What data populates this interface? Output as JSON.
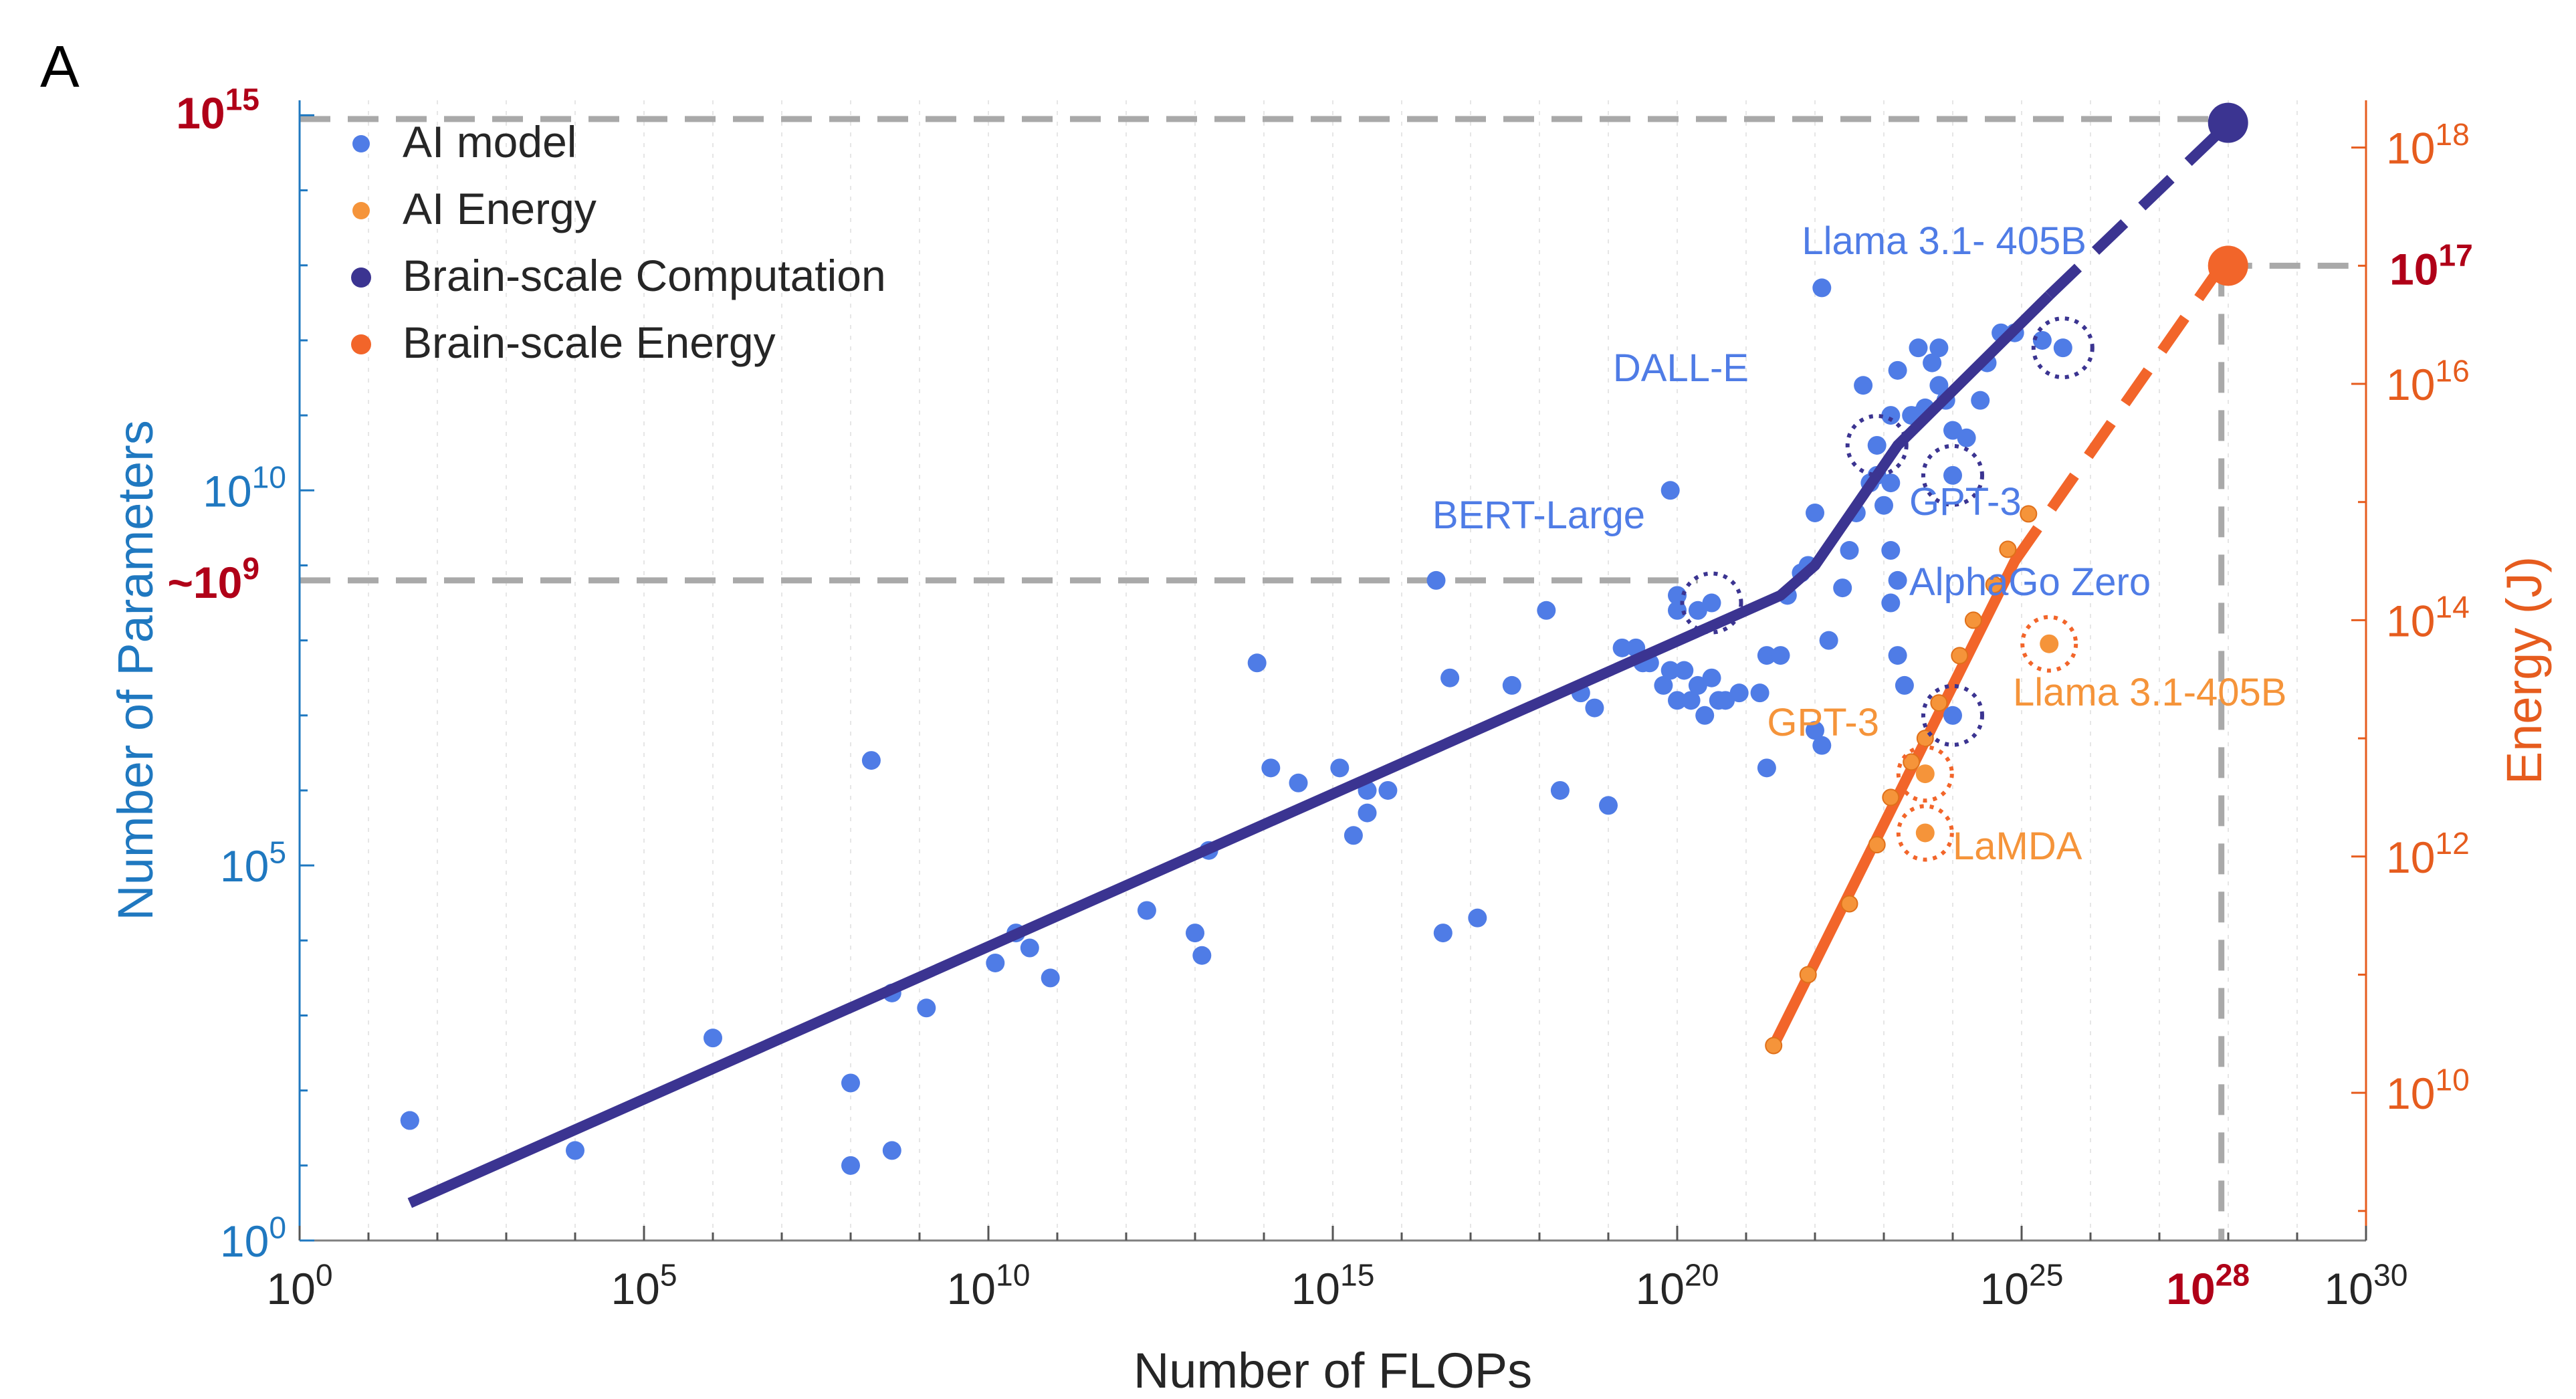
{
  "panel_label": "A",
  "colors": {
    "ai_model": "#4f7ce6",
    "ai_energy": "#f5943a",
    "brain_computation": "#3b3491",
    "brain_energy": "#f2652a",
    "guide": "#a9a9a9",
    "left_axis": "#1f78c0",
    "right_axis": "#e65c1e",
    "highlight": "#b00018"
  },
  "chart_data": {
    "type": "scatter",
    "title": "",
    "xlabel": "Number of FLOPs",
    "ylabel_left": "Number of Parameters",
    "ylabel_right": "Energy (J)",
    "x_log_range": [
      0,
      30
    ],
    "y_left_log_range": [
      0,
      15.2
    ],
    "y_right_log_range": [
      8.75,
      18.4
    ],
    "x_ticks": [
      0,
      5,
      10,
      15,
      20,
      25,
      30
    ],
    "y_left_ticks": [
      0,
      5,
      10
    ],
    "y_right_ticks": [
      10,
      12,
      14,
      16,
      18
    ],
    "grid": "x-only",
    "legend_position": "top-left",
    "legend": [
      {
        "key": "ai_model",
        "label": "AI model",
        "symbol": "dot"
      },
      {
        "key": "ai_energy",
        "label": "AI Energy",
        "symbol": "dot"
      },
      {
        "key": "brain_computation",
        "label": "Brain-scale Computation",
        "symbol": "line"
      },
      {
        "key": "brain_energy",
        "label": "Brain-scale Energy",
        "symbol": "line"
      }
    ],
    "highlights": {
      "x_brain_label_base": "10",
      "x_brain_label_exp": "28",
      "x_brain_value": 27.9,
      "y_param_top_base": "10",
      "y_param_top_exp": "15",
      "y_param_top_value": 14.95,
      "y_param_mid_base": "~10",
      "y_param_mid_exp": "9",
      "y_param_mid_value": 8.8,
      "y_energy_base": "10",
      "y_energy_exp": "17",
      "y_energy_value": 17.0
    },
    "ai_models": [
      [
        1.6,
        1.6
      ],
      [
        4.0,
        1.2
      ],
      [
        1.6,
        1.6
      ],
      [
        6.0,
        2.7
      ],
      [
        8.0,
        2.1
      ],
      [
        8.0,
        1.0
      ],
      [
        8.3,
        6.4
      ],
      [
        8.6,
        3.3
      ],
      [
        8.6,
        1.2
      ],
      [
        9.1,
        3.1
      ],
      [
        10.1,
        3.7
      ],
      [
        10.4,
        4.1
      ],
      [
        10.6,
        3.9
      ],
      [
        10.9,
        3.5
      ],
      [
        12.3,
        4.4
      ],
      [
        13.0,
        4.1
      ],
      [
        13.1,
        3.8
      ],
      [
        13.2,
        5.2
      ],
      [
        13.9,
        7.7
      ],
      [
        14.1,
        6.3
      ],
      [
        14.5,
        6.1
      ],
      [
        15.1,
        6.3
      ],
      [
        15.3,
        5.4
      ],
      [
        15.5,
        5.7
      ],
      [
        15.5,
        6.0
      ],
      [
        15.8,
        6.0
      ],
      [
        16.5,
        8.8
      ],
      [
        16.6,
        4.1
      ],
      [
        16.7,
        7.5
      ],
      [
        17.1,
        4.3
      ],
      [
        17.6,
        7.4
      ],
      [
        18.1,
        8.4
      ],
      [
        18.3,
        6.0
      ],
      [
        18.6,
        7.3
      ],
      [
        18.8,
        7.1
      ],
      [
        19.0,
        5.8
      ],
      [
        19.2,
        7.9
      ],
      [
        19.4,
        7.9
      ],
      [
        19.5,
        7.7
      ],
      [
        19.6,
        7.7
      ],
      [
        19.8,
        7.4
      ],
      [
        19.9,
        7.6
      ],
      [
        20.0,
        7.2
      ],
      [
        20.1,
        7.6
      ],
      [
        20.2,
        7.2
      ],
      [
        20.3,
        7.4
      ],
      [
        20.4,
        7.0
      ],
      [
        20.5,
        7.5
      ],
      [
        20.6,
        7.2
      ],
      [
        20.7,
        7.2
      ],
      [
        20.9,
        7.3
      ],
      [
        20.0,
        8.4
      ],
      [
        19.9,
        10.0
      ],
      [
        20.0,
        8.6
      ],
      [
        20.3,
        8.4
      ],
      [
        21.2,
        7.3
      ],
      [
        21.3,
        7.8
      ],
      [
        21.3,
        6.3
      ],
      [
        21.5,
        7.8
      ],
      [
        21.6,
        8.6
      ],
      [
        21.8,
        8.9
      ],
      [
        21.9,
        9.0
      ],
      [
        22.0,
        9.7
      ],
      [
        22.0,
        6.8
      ],
      [
        22.1,
        6.6
      ],
      [
        22.1,
        12.7
      ],
      [
        22.2,
        8.0
      ],
      [
        22.4,
        8.7
      ],
      [
        22.5,
        9.2
      ],
      [
        22.6,
        9.7
      ],
      [
        22.7,
        11.4
      ],
      [
        22.8,
        10.1
      ],
      [
        22.9,
        10.2
      ],
      [
        23.0,
        9.8
      ],
      [
        23.1,
        10.1
      ],
      [
        23.2,
        11.6
      ],
      [
        23.1,
        11.0
      ],
      [
        23.4,
        11.0
      ],
      [
        23.5,
        11.0
      ],
      [
        23.6,
        11.1
      ],
      [
        23.7,
        11.7
      ],
      [
        23.8,
        11.4
      ],
      [
        24.0,
        10.8
      ],
      [
        23.5,
        11.9
      ],
      [
        23.8,
        11.9
      ],
      [
        24.5,
        11.7
      ],
      [
        24.7,
        12.1
      ],
      [
        24.9,
        12.1
      ],
      [
        25.3,
        12.0
      ],
      [
        23.1,
        8.5
      ],
      [
        23.2,
        8.8
      ],
      [
        23.3,
        7.4
      ],
      [
        23.2,
        7.8
      ],
      [
        23.1,
        9.2
      ],
      [
        23.9,
        11.2
      ],
      [
        24.2,
        10.7
      ],
      [
        24.4,
        11.2
      ]
    ],
    "ai_energy_points": [
      [
        21.4,
        10.4
      ],
      [
        21.9,
        11.0
      ],
      [
        22.5,
        11.6
      ],
      [
        22.9,
        12.1
      ],
      [
        23.1,
        12.5
      ],
      [
        23.4,
        12.8
      ],
      [
        23.6,
        13.0
      ],
      [
        23.8,
        13.3
      ],
      [
        24.1,
        13.7
      ],
      [
        24.3,
        14.0
      ],
      [
        24.6,
        14.3
      ],
      [
        24.8,
        14.6
      ],
      [
        25.1,
        14.9
      ]
    ],
    "ai_energy_labeled": [
      {
        "name": "LaMDA",
        "x": 23.6,
        "y": 12.2
      },
      {
        "name": "GPT-3",
        "x": 23.6,
        "y": 12.7
      },
      {
        "name": "Llama 3.1-405B",
        "x": 25.4,
        "y": 13.8
      }
    ],
    "ai_model_labeled": [
      {
        "name": "Llama 3.1- 405B",
        "x": 25.6,
        "y": 11.9
      },
      {
        "name": "DALL-E",
        "x": 22.9,
        "y": 10.6
      },
      {
        "name": "GPT-3",
        "x": 24.0,
        "y": 10.2
      },
      {
        "name": "BERT-Large",
        "x": 20.5,
        "y": 8.5
      },
      {
        "name": "AlphaGo Zero",
        "x": 24.0,
        "y": 7.0
      }
    ],
    "brain_computation_solid": [
      [
        1.6,
        0.5
      ],
      [
        21.5,
        8.6
      ],
      [
        22.0,
        9.0
      ],
      [
        23.2,
        10.6
      ],
      [
        25.4,
        12.6
      ]
    ],
    "brain_computation_dashed": [
      [
        25.4,
        12.6
      ],
      [
        27.9,
        14.8
      ]
    ],
    "brain_computation_end": [
      27.9,
      14.9
    ],
    "brain_energy_solid": [
      [
        21.4,
        10.4
      ],
      [
        24.9,
        14.5
      ]
    ],
    "brain_energy_dashed": [
      [
        24.9,
        14.5
      ],
      [
        27.9,
        17.0
      ]
    ],
    "brain_energy_end": [
      27.9,
      17.0
    ]
  }
}
